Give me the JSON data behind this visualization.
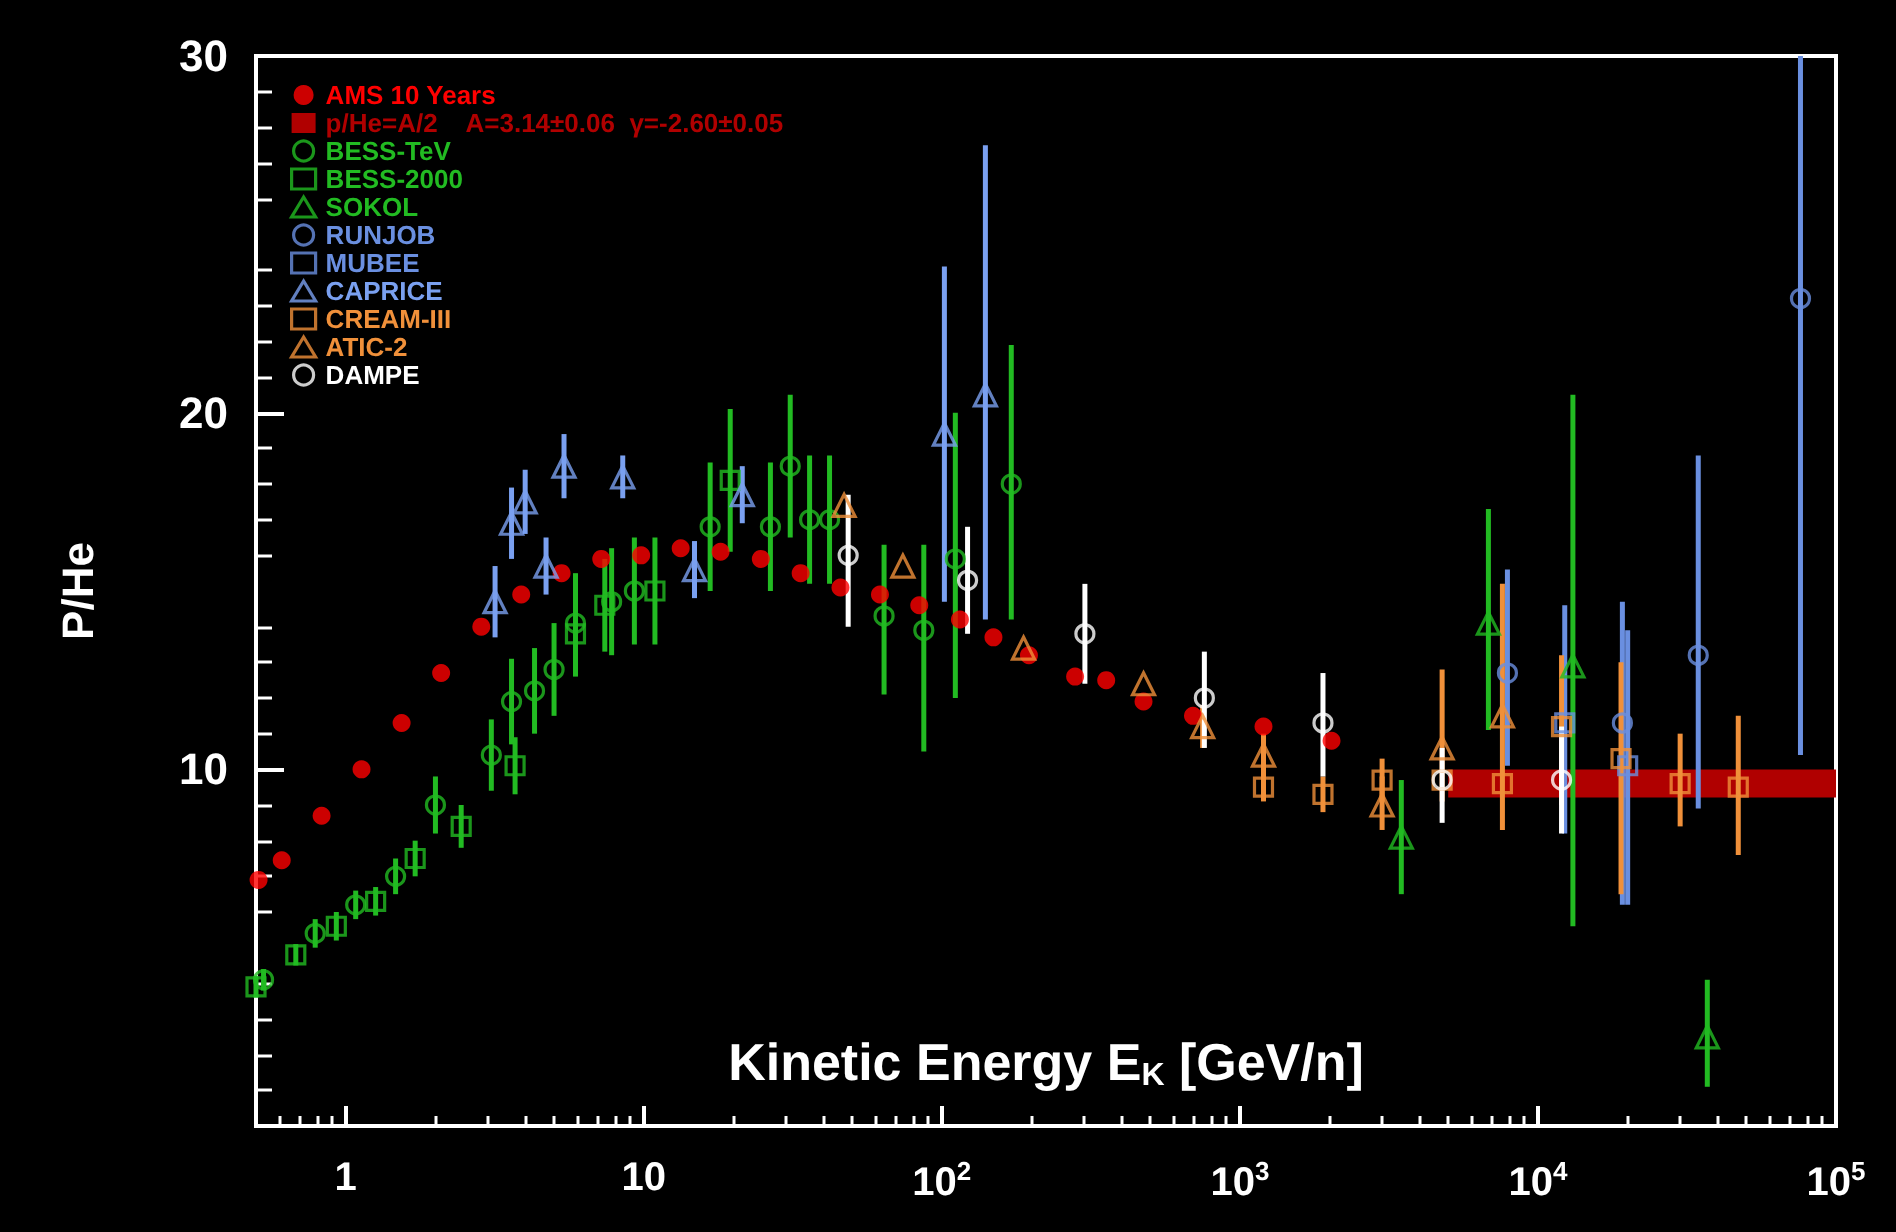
{
  "chart_data": {
    "type": "scatter",
    "xlabel": "Kinetic Energy E$_{K}$ [GeV/n]",
    "ylabel": "P/He",
    "log": "x",
    "grid": false,
    "legend": "top left",
    "xlim": [
      0.5,
      100000
    ],
    "xticks": [
      1,
      10,
      {
        "value": 100,
        "label": "10$^{2}$"
      },
      {
        "value": 1000,
        "label": "10$^{3}$"
      },
      {
        "value": 10000,
        "label": "10$^{4}$"
      },
      {
        "value": 100000,
        "label": "10$^{5}$"
      }
    ],
    "ylim": [
      0,
      30
    ],
    "yticks": [
      10,
      20,
      30
    ],
    "series": [
      {
        "name": "AMS 10 Years",
        "color": "#ff0000",
        "x": [
          0.51,
          0.61,
          0.83,
          1.13,
          1.54,
          2.09,
          2.85,
          3.88,
          5.3,
          7.2,
          9.8,
          13.3,
          18.1,
          24.7,
          33.6,
          45.7,
          62,
          84,
          115,
          149,
          196,
          280,
          356,
          475,
          696,
          1200,
          2030
        ],
        "values": [
          6.9,
          7.45,
          8.7,
          10.0,
          11.3,
          12.7,
          14.0,
          14.9,
          15.5,
          15.9,
          16.0,
          16.2,
          16.1,
          15.9,
          15.5,
          15.1,
          14.9,
          14.6,
          14.2,
          13.7,
          13.2,
          12.6,
          12.5,
          11.9,
          11.5,
          11.2,
          10.8
        ]
      },
      {
        "name": "p/He=A/2    A=3.14±0.06  γ=-2.60±0.05",
        "color": "#b00000",
        "type": "line",
        "marker": "none",
        "x": [
          5000,
          100000
        ],
        "values": [
          9.6,
          9.6
        ]
      },
      {
        "name": "BESS-TeV",
        "color": "#22bb22",
        "marker": "circle",
        "x": [
          0.53,
          0.79,
          1.08,
          1.47,
          2.0,
          3.08,
          3.6,
          4.3,
          5.0,
          5.9,
          7.8,
          9.3,
          16.7,
          26.6,
          31,
          36,
          42,
          64,
          87,
          111,
          171
        ],
        "values": [
          4.1,
          5.4,
          6.2,
          7.0,
          9.0,
          10.4,
          11.9,
          12.2,
          12.8,
          14.1,
          14.7,
          15.0,
          16.8,
          16.8,
          18.5,
          17.0,
          17.0,
          14.3,
          13.9,
          15.9,
          18.0
        ],
        "errors": [
          0.3,
          0.4,
          0.4,
          0.5,
          0.8,
          1.0,
          1.2,
          1.2,
          1.3,
          1.4,
          1.5,
          1.5,
          1.8,
          1.8,
          2.0,
          1.8,
          1.8,
          [
            12.1,
            16.3
          ],
          [
            10.5,
            16.3
          ],
          [
            12.0,
            20.0
          ],
          [
            14.2,
            21.9
          ]
        ]
      },
      {
        "name": "BESS-2000",
        "color": "#22bb22",
        "marker": "square",
        "x": [
          0.5,
          0.68,
          0.93,
          1.26,
          1.71,
          2.44,
          3.7,
          5.9,
          7.4,
          10.9,
          19.5
        ],
        "values": [
          3.9,
          4.8,
          5.6,
          6.3,
          7.5,
          8.4,
          10.1,
          13.8,
          14.6,
          15.0,
          18.1
        ],
        "errors": [
          0.3,
          0.3,
          0.4,
          0.4,
          0.5,
          0.6,
          0.8,
          1.2,
          1.3,
          1.5,
          2.0
        ]
      },
      {
        "name": "SOKOL",
        "color": "#22bb22",
        "marker": "triangle",
        "x": [
          3480,
          6820,
          13100,
          37000
        ],
        "values": [
          8.1,
          14.1,
          12.9,
          2.5
        ],
        "errors": [
          [
            6.5,
            9.7
          ],
          [
            11.1,
            17.3
          ],
          [
            5.6,
            20.5
          ],
          [
            1.1,
            4.1
          ]
        ]
      },
      {
        "name": "RUNJOB",
        "color": "#6a8fe0",
        "marker": "circle",
        "x": [
          7900,
          19200,
          34500,
          76000
        ],
        "values": [
          12.7,
          11.3,
          13.2,
          23.2
        ],
        "errors": [
          [
            10.1,
            15.6
          ],
          [
            6.2,
            14.7
          ],
          [
            8.9,
            18.8
          ],
          [
            10.4,
            30
          ]
        ]
      },
      {
        "name": "MUBEE",
        "color": "#6a8fe0",
        "marker": "square",
        "x": [
          12300,
          20000
        ],
        "values": [
          11.3,
          10.1
        ],
        "errors": [
          [
            8.2,
            14.6
          ],
          [
            6.2,
            13.9
          ]
        ]
      },
      {
        "name": "CAPRICE",
        "color": "#7aa0f0",
        "marker": "triangle",
        "x": [
          3.17,
          3.6,
          4.0,
          4.7,
          5.4,
          8.5,
          14.8,
          21.4,
          102,
          140
        ],
        "values": [
          14.7,
          16.9,
          17.5,
          15.7,
          18.5,
          18.2,
          15.6,
          17.7,
          19.4,
          20.5
        ],
        "errors": [
          1.0,
          1.0,
          0.9,
          0.8,
          0.9,
          0.6,
          0.8,
          0.8,
          [
            14.7,
            24.1
          ],
          [
            14.2,
            27.5
          ]
        ]
      },
      {
        "name": "CREAM-III",
        "color": "#f0903a",
        "marker": "square",
        "x": [
          1200,
          1900,
          3000,
          4770,
          7600,
          12000,
          19000,
          30000,
          47000
        ],
        "values": [
          9.5,
          9.3,
          9.7,
          9.7,
          9.6,
          11.2,
          10.3,
          9.6,
          9.5
        ],
        "errors": [
          0.4,
          0.5,
          0.6,
          [
            9.1,
            12.8
          ],
          [
            8.3,
            15.2
          ],
          [
            9.0,
            13.2
          ],
          [
            6.5,
            13.0
          ],
          [
            8.4,
            11.0
          ],
          [
            7.6,
            11.5
          ]
        ]
      },
      {
        "name": "ATIC-2",
        "color": "#f0903a",
        "marker": "triangle",
        "x": [
          47,
          74,
          188,
          475,
          750,
          1200,
          3000,
          4770,
          7600
        ],
        "values": [
          17.4,
          15.7,
          13.4,
          12.4,
          11.2,
          10.4,
          9.0,
          10.6,
          11.5
        ],
        "errors": [
          null,
          null,
          null,
          null,
          0.6,
          0.6,
          [
            8.3,
            9.8
          ],
          null,
          null
        ]
      },
      {
        "name": "DAMPE",
        "color": "#ffffff",
        "marker": "circle",
        "x": [
          48.5,
          122,
          302,
          760,
          1900,
          4770,
          12000
        ],
        "values": [
          16.0,
          15.3,
          13.8,
          12.0,
          11.3,
          9.7,
          9.7
        ],
        "errors": [
          [
            14.0,
            17.7
          ],
          [
            13.8,
            16.8
          ],
          [
            12.4,
            15.2
          ],
          [
            10.6,
            13.3
          ],
          [
            9.8,
            12.7
          ],
          [
            8.5,
            10.6
          ],
          [
            8.2,
            11.2
          ]
        ]
      }
    ]
  }
}
